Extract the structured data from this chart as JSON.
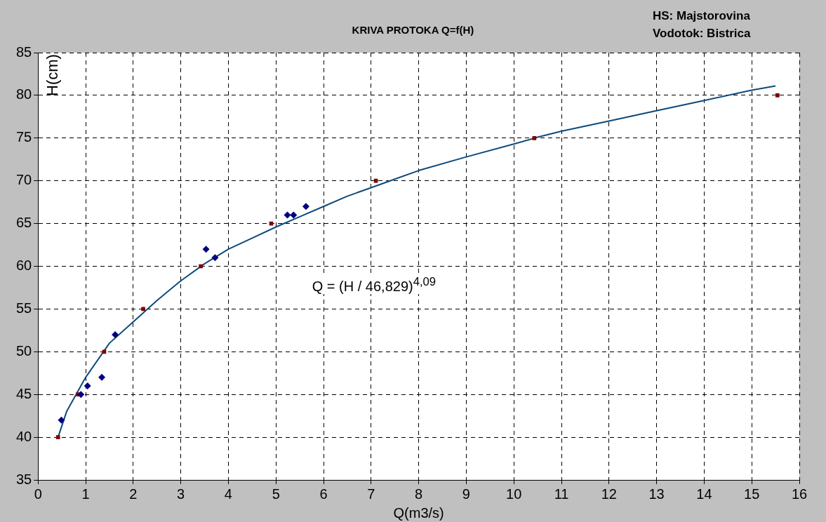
{
  "chart_data": {
    "type": "scatter",
    "title": "KRIVA PROTOKA Q=f(H)",
    "subtitle": "HS: Majstorovina\nVodotok: Bistrica",
    "xlabel": "Q(m3/s)",
    "ylabel": "H(cm)",
    "annotations": [
      "Q = (H / 46,829)$^{4,09}$"
    ],
    "xlim": [
      0,
      16
    ],
    "xticks": [
      0,
      1,
      2,
      3,
      4,
      5,
      6,
      7,
      8,
      9,
      10,
      11,
      12,
      13,
      14,
      15,
      16
    ],
    "ylim": [
      35,
      85
    ],
    "yticks": [
      35,
      40,
      45,
      50,
      55,
      60,
      65,
      70,
      75,
      80,
      85
    ],
    "grid": true,
    "legend": false,
    "series": [
      {
        "type": "line",
        "color": "#0d4a7c",
        "marker": "none",
        "x": [
          0.42,
          0.6,
          1,
          1.5,
          2,
          2.5,
          3,
          3.5,
          4,
          4.5,
          5,
          5.5,
          6,
          6.5,
          7,
          7.5,
          8,
          9,
          10,
          10.5,
          11,
          12,
          13,
          14,
          15,
          15.5
        ],
        "values": [
          40,
          43,
          47,
          51,
          53.5,
          56,
          58.3,
          60.3,
          62,
          63.3,
          64.6,
          65.8,
          67,
          68.2,
          69.2,
          70.2,
          71.2,
          72.8,
          74.3,
          75.1,
          75.8,
          77,
          78.2,
          79.4,
          80.6,
          81.1
        ]
      },
      {
        "color": "#000080",
        "marker": "diamond",
        "x": [
          0.49,
          0.9,
          1.04,
          1.34,
          1.62,
          3.53,
          3.72,
          5.24,
          5.37,
          5.63
        ],
        "values": [
          42,
          45,
          46,
          47,
          52,
          62,
          61,
          66,
          66,
          67
        ]
      },
      {
        "color": "#800000",
        "marker": "square",
        "x": [
          0.42,
          0.84,
          1.39,
          2.21,
          3.42,
          4.9,
          7.1,
          10.43,
          15.54
        ],
        "values": [
          40,
          45,
          50,
          55,
          60,
          65,
          70,
          75,
          80
        ]
      }
    ]
  }
}
